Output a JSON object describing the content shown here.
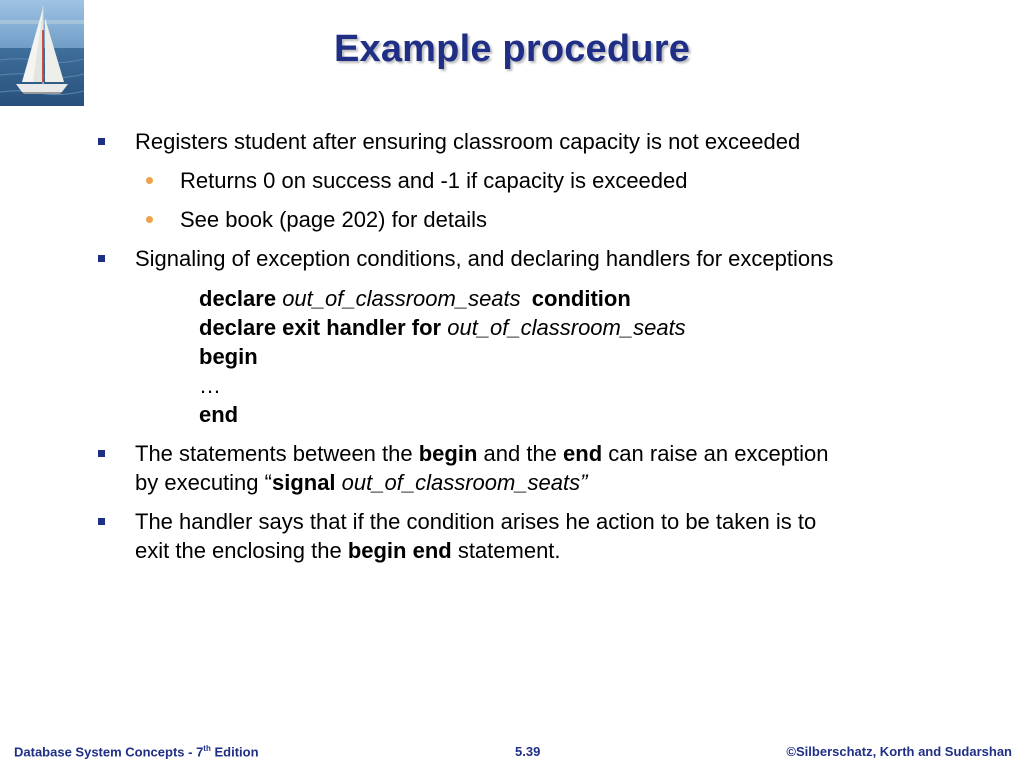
{
  "slide": {
    "title": "Example procedure"
  },
  "bullets": [
    {
      "text": "Registers student after ensuring classroom capacity is not exceeded"
    },
    {
      "text": "Returns 0 on success and -1 if capacity is exceeded"
    },
    {
      "text": "See book (page 202) for details"
    },
    {
      "text": "Signaling of exception conditions, and declaring handlers for exceptions"
    }
  ],
  "code": {
    "line1_kw": "declare",
    "line1_var": "out_of_classroom_seats",
    "line1_kw2": "condition",
    "line2_kw": "declare exit handler for",
    "line2_var": "out_of_classroom_seats",
    "line3": "begin",
    "line4": "…",
    "line5": "end"
  },
  "bullet3": {
    "p1": "The statements between the ",
    "b1": "begin",
    "p2": " and the ",
    "b2": "end",
    "p3": " can raise an exception",
    "p4": "by executing  “",
    "b3": "signal",
    "p5": " ",
    "i1": "out_of_classroom_seats”"
  },
  "bullet4": {
    "p1": "The handler says that if the condition arises he action to be taken is to",
    "p2": "exit the enclosing  the ",
    "b1": "begin  end",
    "p3": " statement."
  },
  "footer": {
    "left": "Database System Concepts - 7",
    "left_sup": "th",
    "left_end": " Edition",
    "center": "5.39",
    "right": "©Silberschatz, Korth and Sudarshan"
  },
  "colors": {
    "title": "#1f2f86",
    "square_bullet": "#1f2f86",
    "round_bullet": "#f0a24a"
  }
}
